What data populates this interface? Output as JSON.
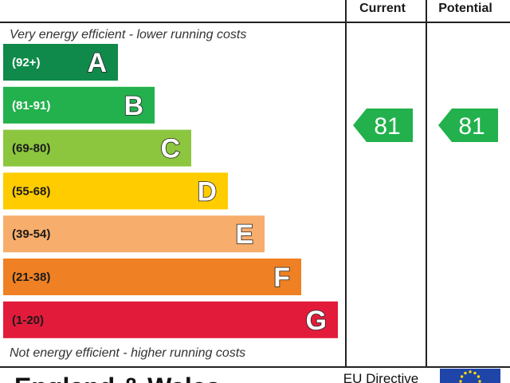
{
  "chart_data": {
    "type": "bar",
    "header": {
      "current": "Current",
      "potential": "Potential"
    },
    "top_note": "Very energy efficient - lower running costs",
    "bottom_note": "Not energy efficient - higher running costs",
    "bands": [
      {
        "letter": "A",
        "range": "(92+)",
        "color": "#0f8a4a",
        "text_color": "#ffffff"
      },
      {
        "letter": "B",
        "range": "(81-91)",
        "color": "#22b14c",
        "text_color": "#ffffff"
      },
      {
        "letter": "C",
        "range": "(69-80)",
        "color": "#8cc63f",
        "text_color": "#1a1a1a"
      },
      {
        "letter": "D",
        "range": "(55-68)",
        "color": "#ffcc00",
        "text_color": "#1a1a1a"
      },
      {
        "letter": "E",
        "range": "(39-54)",
        "color": "#f7ad6b",
        "text_color": "#1a1a1a"
      },
      {
        "letter": "F",
        "range": "(21-38)",
        "color": "#ef8023",
        "text_color": "#1a1a1a"
      },
      {
        "letter": "G",
        "range": "(1-20)",
        "color": "#e21b3b",
        "text_color": "#1a1a1a"
      }
    ],
    "current": 81,
    "potential": 81,
    "rating_color": "#22b14c"
  },
  "footer": {
    "left": "England & Wales",
    "right": "EU Directive",
    "flag_color": "#1f45a8",
    "star_color": "#ffdd00"
  }
}
